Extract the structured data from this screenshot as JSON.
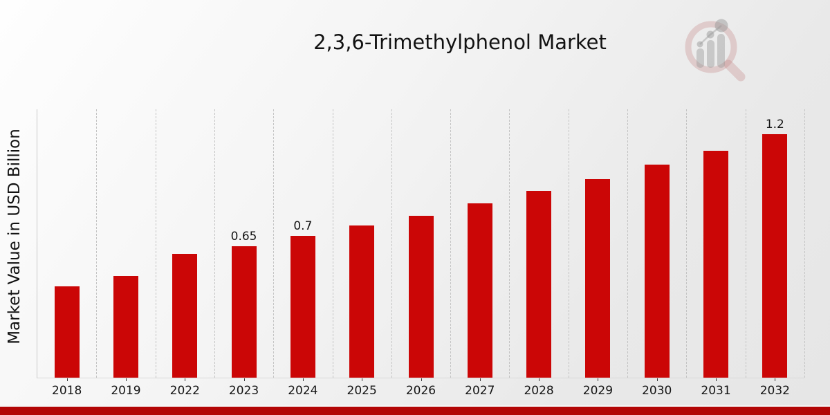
{
  "header": {
    "title": "2,3,6-Trimethylphenol Market"
  },
  "y_axis": {
    "label": "Market Value in USD Billion"
  },
  "branding": {
    "logo_icon": "magnifier-bar-chart-logo"
  },
  "colors": {
    "bar": "#cb0606",
    "footer_band": "#b30606",
    "gridline": "#c3c3c3",
    "text": "#141414"
  },
  "chart_data": {
    "type": "bar",
    "title": "2,3,6-Trimethylphenol Market",
    "xlabel": "",
    "ylabel": "Market Value in USD Billion",
    "categories": [
      "2018",
      "2019",
      "2022",
      "2023",
      "2024",
      "2025",
      "2026",
      "2027",
      "2028",
      "2029",
      "2030",
      "2031",
      "2032"
    ],
    "values": [
      0.45,
      0.5,
      0.61,
      0.65,
      0.7,
      0.75,
      0.8,
      0.86,
      0.92,
      0.98,
      1.05,
      1.12,
      1.2
    ],
    "value_labels": [
      "",
      "",
      "",
      "0.65",
      "0.7",
      "",
      "",
      "",
      "",
      "",
      "",
      "",
      "1.2"
    ],
    "unit": "USD Billion",
    "ylim": [
      0,
      1.324
    ],
    "grid": "vertical-dashed",
    "legend": "none",
    "bar_color": "#cb0606"
  }
}
